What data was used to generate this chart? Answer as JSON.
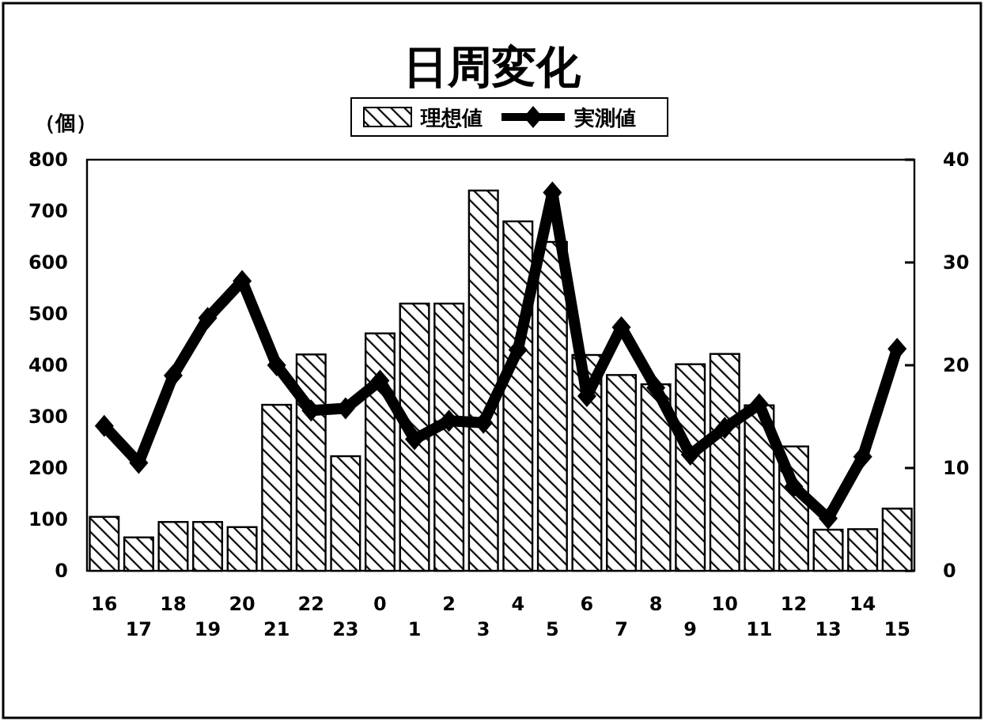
{
  "chart_data": {
    "type": "bar",
    "title": "日周変化",
    "ylabel": "（個）",
    "categories": [
      "16",
      "17",
      "18",
      "19",
      "20",
      "21",
      "22",
      "23",
      "0",
      "1",
      "2",
      "3",
      "4",
      "5",
      "6",
      "7",
      "8",
      "9",
      "10",
      "11",
      "12",
      "13",
      "14",
      "15"
    ],
    "series": [
      {
        "name": "理想値",
        "color": "#000000",
        "values": [
          105,
          65,
          95,
          95,
          85,
          323,
          421,
          223,
          462,
          520,
          520,
          740,
          680,
          640,
          420,
          381,
          363,
          402,
          422,
          322,
          242,
          80,
          81,
          121
        ]
      },
      {
        "name": "実測値",
        "type": "line",
        "axis": "y2",
        "color": "#000000",
        "marker": "diamond",
        "values": [
          14.1,
          10.5,
          19,
          24.6,
          28.2,
          20,
          15.6,
          15.8,
          18.5,
          12.8,
          14.6,
          14.4,
          21.5,
          36.8,
          17,
          23.7,
          17.8,
          11.3,
          13.9,
          16.2,
          8.2,
          5.1,
          11.1,
          21.6
        ]
      }
    ],
    "ylim": [
      0,
      800
    ],
    "yticks": [
      0,
      100,
      200,
      300,
      400,
      500,
      600,
      700,
      800
    ],
    "y2lim": [
      0,
      40
    ],
    "y2ticks": [
      0,
      10,
      20,
      30,
      40
    ],
    "legend": "top"
  }
}
